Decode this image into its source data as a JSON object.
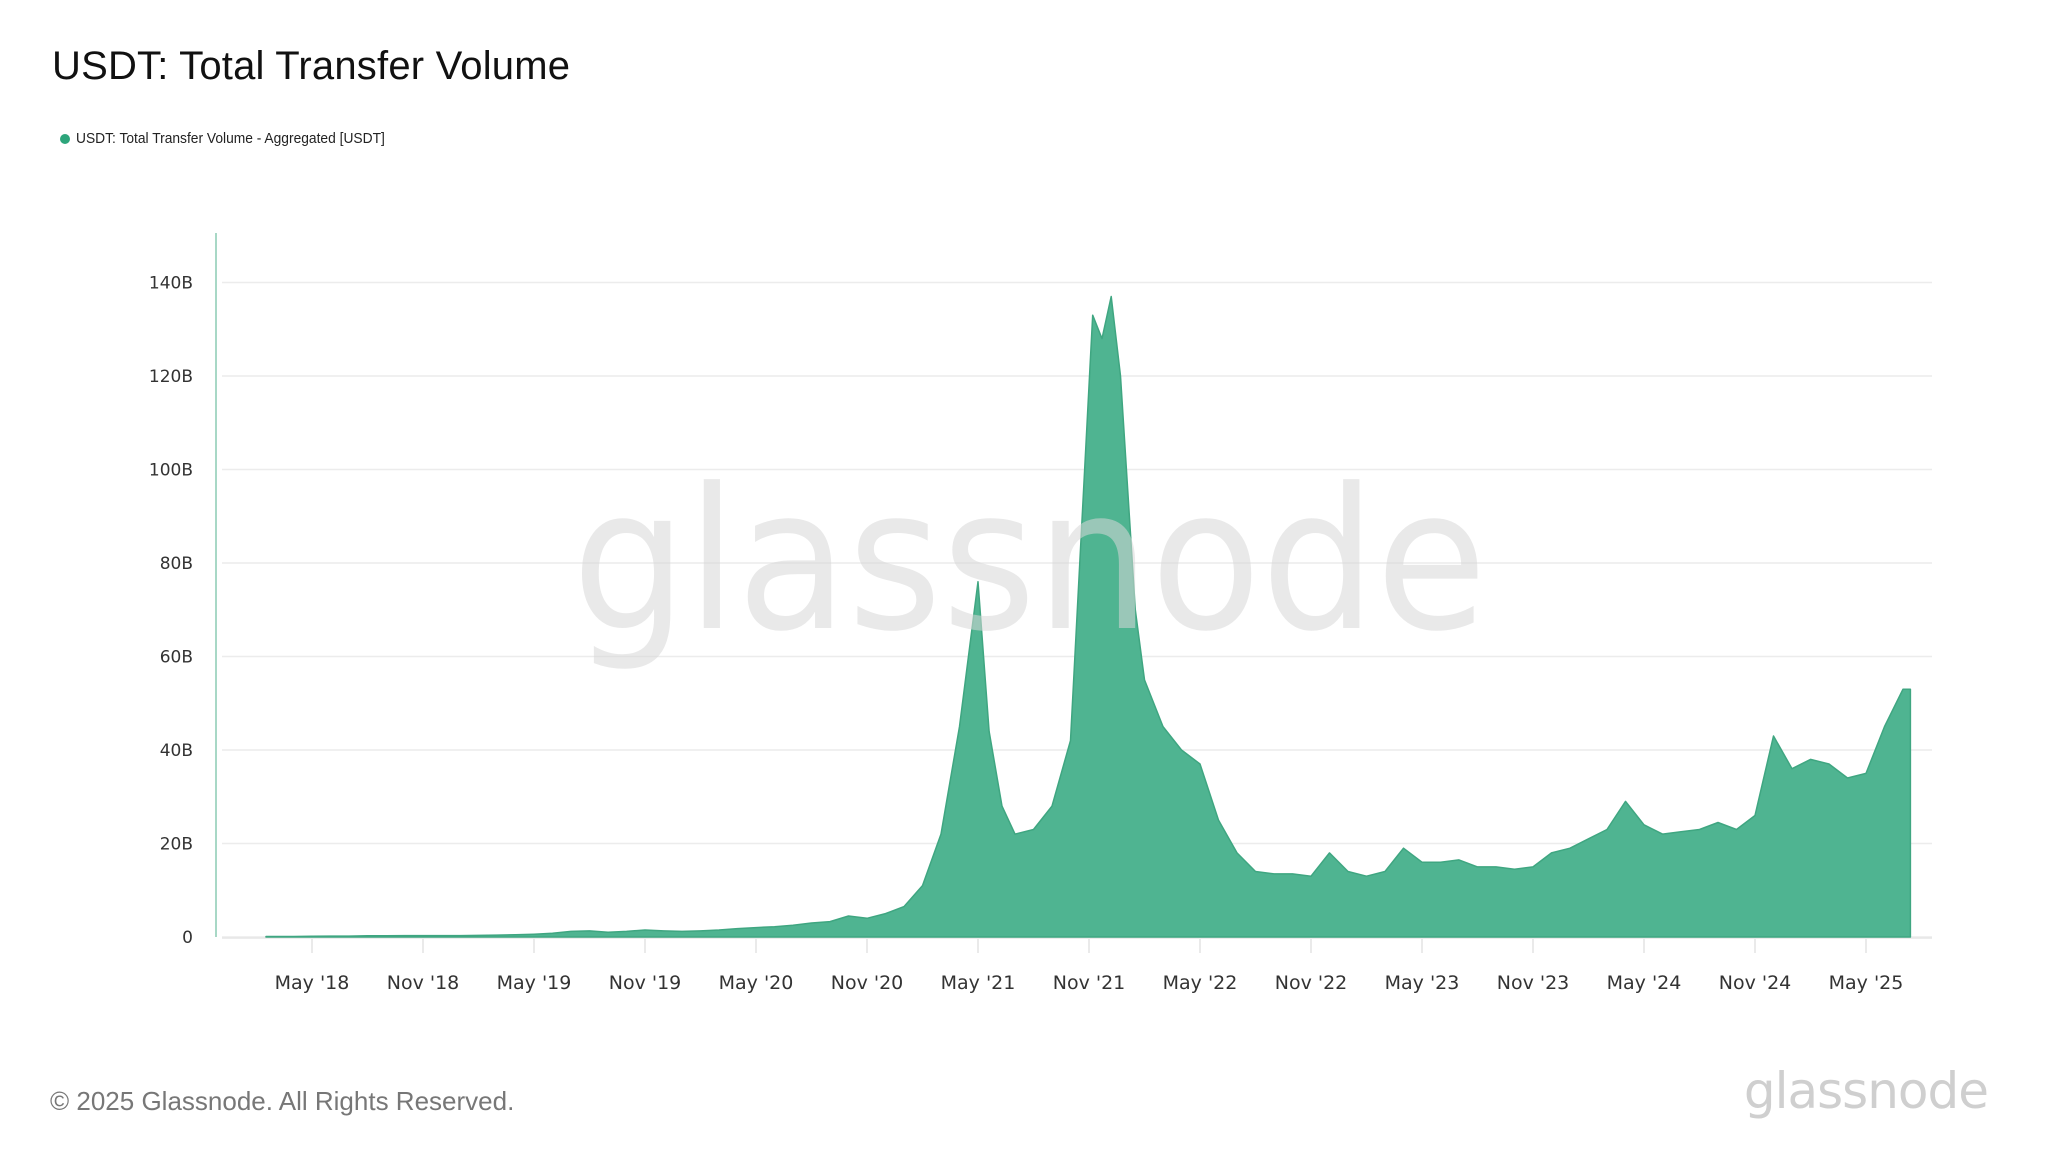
{
  "header": {
    "title": "USDT: Total Transfer Volume"
  },
  "legend": {
    "items": [
      {
        "label": "USDT: Total Transfer Volume - Aggregated [USDT]",
        "color": "#2da57b"
      }
    ]
  },
  "watermark": {
    "text": "glassnode"
  },
  "footer": {
    "copyright": "© 2025 Glassnode. All Rights Reserved.",
    "logo_text": "glassnode"
  },
  "colors": {
    "fill": "#4fb491",
    "line": "#3fa681",
    "grid": "#ececec",
    "axis": "#a8d8c6"
  },
  "chart_data": {
    "type": "area",
    "title": "USDT: Total Transfer Volume",
    "xlabel": "",
    "ylabel": "",
    "ylim": [
      0,
      150
    ],
    "y_unit": "B",
    "grid": true,
    "legend_position": "top-left",
    "y_ticks": [
      "0",
      "20B",
      "40B",
      "60B",
      "80B",
      "100B",
      "120B",
      "140B"
    ],
    "y_tick_values": [
      0,
      20,
      40,
      60,
      80,
      100,
      120,
      140
    ],
    "x_ticks": [
      "May '18",
      "Nov '18",
      "May '19",
      "Nov '19",
      "May '20",
      "Nov '20",
      "May '21",
      "Nov '21",
      "May '22",
      "Nov '22",
      "May '23",
      "Nov '23",
      "May '24",
      "Nov '24",
      "May '25"
    ],
    "series": [
      {
        "name": "USDT: Total Transfer Volume - Aggregated [USDT]",
        "x": [
          "2018-03",
          "2018-04",
          "2018-05",
          "2018-06",
          "2018-07",
          "2018-08",
          "2018-09",
          "2018-10",
          "2018-11",
          "2018-12",
          "2019-01",
          "2019-02",
          "2019-03",
          "2019-04",
          "2019-05",
          "2019-06",
          "2019-07",
          "2019-08",
          "2019-09",
          "2019-10",
          "2019-11",
          "2019-12",
          "2020-01",
          "2020-02",
          "2020-03",
          "2020-04",
          "2020-05",
          "2020-06",
          "2020-07",
          "2020-08",
          "2020-09",
          "2020-10",
          "2020-11",
          "2020-12",
          "2021-01",
          "2021-02",
          "2021-03",
          "2021-04",
          "2021-05a",
          "2021-05b",
          "2021-06",
          "2021-07",
          "2021-08",
          "2021-09",
          "2021-10",
          "2021-11a",
          "2021-11b",
          "2021-12a",
          "2021-12b",
          "2022-01",
          "2022-02",
          "2022-03",
          "2022-04",
          "2022-05",
          "2022-06",
          "2022-07",
          "2022-08",
          "2022-09",
          "2022-10",
          "2022-11",
          "2022-12",
          "2023-01",
          "2023-02",
          "2023-03",
          "2023-04",
          "2023-05",
          "2023-06",
          "2023-07",
          "2023-08",
          "2023-09",
          "2023-10",
          "2023-11",
          "2023-12",
          "2024-01",
          "2024-02",
          "2024-03",
          "2024-04",
          "2024-05",
          "2024-06",
          "2024-07",
          "2024-08",
          "2024-09",
          "2024-10",
          "2024-11",
          "2024-12",
          "2025-01",
          "2025-02",
          "2025-03",
          "2025-04",
          "2025-05",
          "2025-06",
          "2025-07a",
          "2025-07b"
        ],
        "month_index": [
          0,
          1,
          2,
          3,
          4,
          5,
          6,
          7,
          8,
          9,
          10,
          11,
          12,
          13,
          14,
          15,
          16,
          17,
          18,
          19,
          20,
          21,
          22,
          23,
          24,
          25,
          26,
          27,
          28,
          29,
          30,
          31,
          32,
          33,
          34,
          35,
          36,
          37,
          38,
          38.6,
          39.3,
          40,
          41,
          42,
          43,
          44.2,
          44.7,
          45.2,
          45.7,
          46.5,
          47,
          48,
          49,
          50,
          51,
          52,
          53,
          54,
          55,
          56,
          57,
          58,
          59,
          60,
          61,
          62,
          63,
          64,
          65,
          66,
          67,
          68,
          69,
          70,
          71,
          72,
          73,
          74,
          75,
          76,
          77,
          78,
          79,
          80,
          81,
          82,
          83,
          84,
          85,
          86,
          87,
          88,
          88.4
        ],
        "values": [
          0.1,
          0.1,
          0.15,
          0.2,
          0.2,
          0.25,
          0.25,
          0.3,
          0.3,
          0.3,
          0.3,
          0.35,
          0.4,
          0.5,
          0.6,
          0.8,
          1.2,
          1.3,
          1.0,
          1.2,
          1.5,
          1.3,
          1.2,
          1.3,
          1.5,
          1.8,
          2.0,
          2.2,
          2.5,
          3.0,
          3.3,
          4.5,
          4.0,
          5.0,
          6.5,
          11,
          22,
          45,
          76,
          44,
          28,
          22,
          23,
          28,
          42,
          133,
          128,
          137,
          120,
          70,
          55,
          45,
          40,
          37,
          25,
          18,
          14,
          13.5,
          13.5,
          13,
          18,
          14,
          13,
          14,
          19,
          16,
          16,
          16.5,
          15,
          15,
          14.5,
          15,
          18,
          19,
          21,
          23,
          29,
          24,
          22,
          22.5,
          23,
          24.5,
          23,
          26,
          43,
          36,
          38,
          37,
          34,
          35,
          45,
          53,
          53
        ]
      }
    ]
  }
}
